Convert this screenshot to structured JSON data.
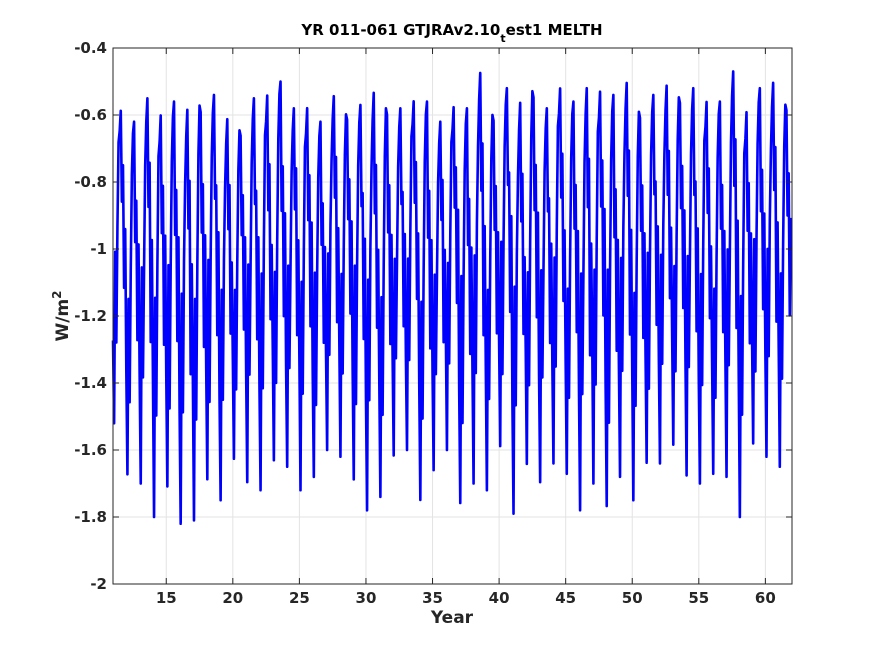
{
  "chart_data": {
    "type": "line",
    "title_main": "YR 011-061 GTJRAv2.10",
    "title_sub": "t",
    "title_rest": "est1 MELTH",
    "xlabel": "Year",
    "ylabel_main": "W/m",
    "ylabel_sup": "2",
    "xlim": [
      11,
      62
    ],
    "ylim": [
      -2,
      -0.4
    ],
    "grid": true,
    "xticks": [
      15,
      20,
      25,
      30,
      35,
      40,
      45,
      50,
      55,
      60
    ],
    "xtick_labels": [
      "15",
      "20",
      "25",
      "30",
      "35",
      "40",
      "45",
      "50",
      "55",
      "60"
    ],
    "yticks": [
      -2,
      -1.8,
      -1.6,
      -1.4,
      -1.2,
      -1,
      -0.8,
      -0.6,
      -0.4
    ],
    "ytick_labels": [
      "-2",
      "-1.8",
      "-1.6",
      "-1.4",
      "-1.2",
      "-1",
      "-0.8",
      "-0.6",
      "-0.4"
    ],
    "series": [
      {
        "color": "#0000ff",
        "style": "monthly seasonal cycle",
        "annual_minima": [
          -1.52,
          -1.7,
          -1.7,
          -1.8,
          -1.73,
          -1.82,
          -1.81,
          -1.7,
          -1.75,
          -1.66,
          -1.7,
          -1.72,
          -1.66,
          -1.65,
          -1.72,
          -1.7,
          -1.6,
          -1.62,
          -1.7,
          -1.78,
          -1.78,
          -1.62,
          -1.6,
          -1.78,
          -1.66,
          -1.6,
          -1.78,
          -1.7,
          -1.72,
          -1.6,
          -1.79,
          -1.68,
          -1.7,
          -1.64,
          -1.7,
          -1.78,
          -1.7,
          -1.79,
          -1.68,
          -1.75,
          -1.65,
          -1.64,
          -1.62,
          -1.68,
          -1.7,
          -1.7,
          -1.68,
          -1.8,
          -1.6,
          -1.62,
          -1.65
        ],
        "annual_maxima": [
          -0.57,
          -0.62,
          -0.55,
          -0.57,
          -0.56,
          -0.58,
          -0.55,
          -0.54,
          -0.6,
          -0.62,
          -0.55,
          -0.52,
          -0.5,
          -0.58,
          -0.55,
          -0.62,
          -0.54,
          -0.58,
          -0.57,
          -0.52,
          -0.55,
          -0.58,
          -0.54,
          -0.56,
          -0.62,
          -0.55,
          -0.58,
          -0.47,
          -0.58,
          -0.52,
          -0.55,
          -0.5,
          -0.58,
          -0.5,
          -0.56,
          -0.52,
          -0.5,
          -0.54,
          -0.5,
          -0.57,
          -0.54,
          -0.5,
          -0.52,
          -0.52,
          -0.54,
          -0.56,
          -0.47,
          -0.56,
          -0.52,
          -0.5,
          -0.55
        ]
      }
    ]
  }
}
